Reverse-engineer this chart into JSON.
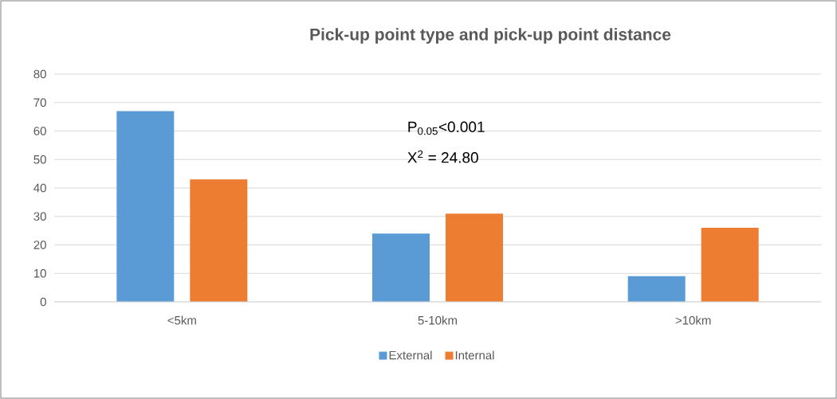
{
  "chart_data": {
    "type": "bar",
    "title": "Pick-up point type and pick-up point distance",
    "categories": [
      "<5km",
      "5-10km",
      ">10km"
    ],
    "series": [
      {
        "name": "External",
        "color": "#5b9bd5",
        "values": [
          67,
          24,
          9
        ]
      },
      {
        "name": "Internal",
        "color": "#ed7d31",
        "values": [
          43,
          31,
          26
        ]
      }
    ],
    "ylim": [
      0,
      80
    ],
    "yticks": [
      0,
      10,
      20,
      30,
      40,
      50,
      60,
      70,
      80
    ],
    "grid": "y",
    "legend": "bottom",
    "annotations": [
      "P$_{0.05}$<0.001",
      "X$^{2}$ = 24.80"
    ]
  }
}
